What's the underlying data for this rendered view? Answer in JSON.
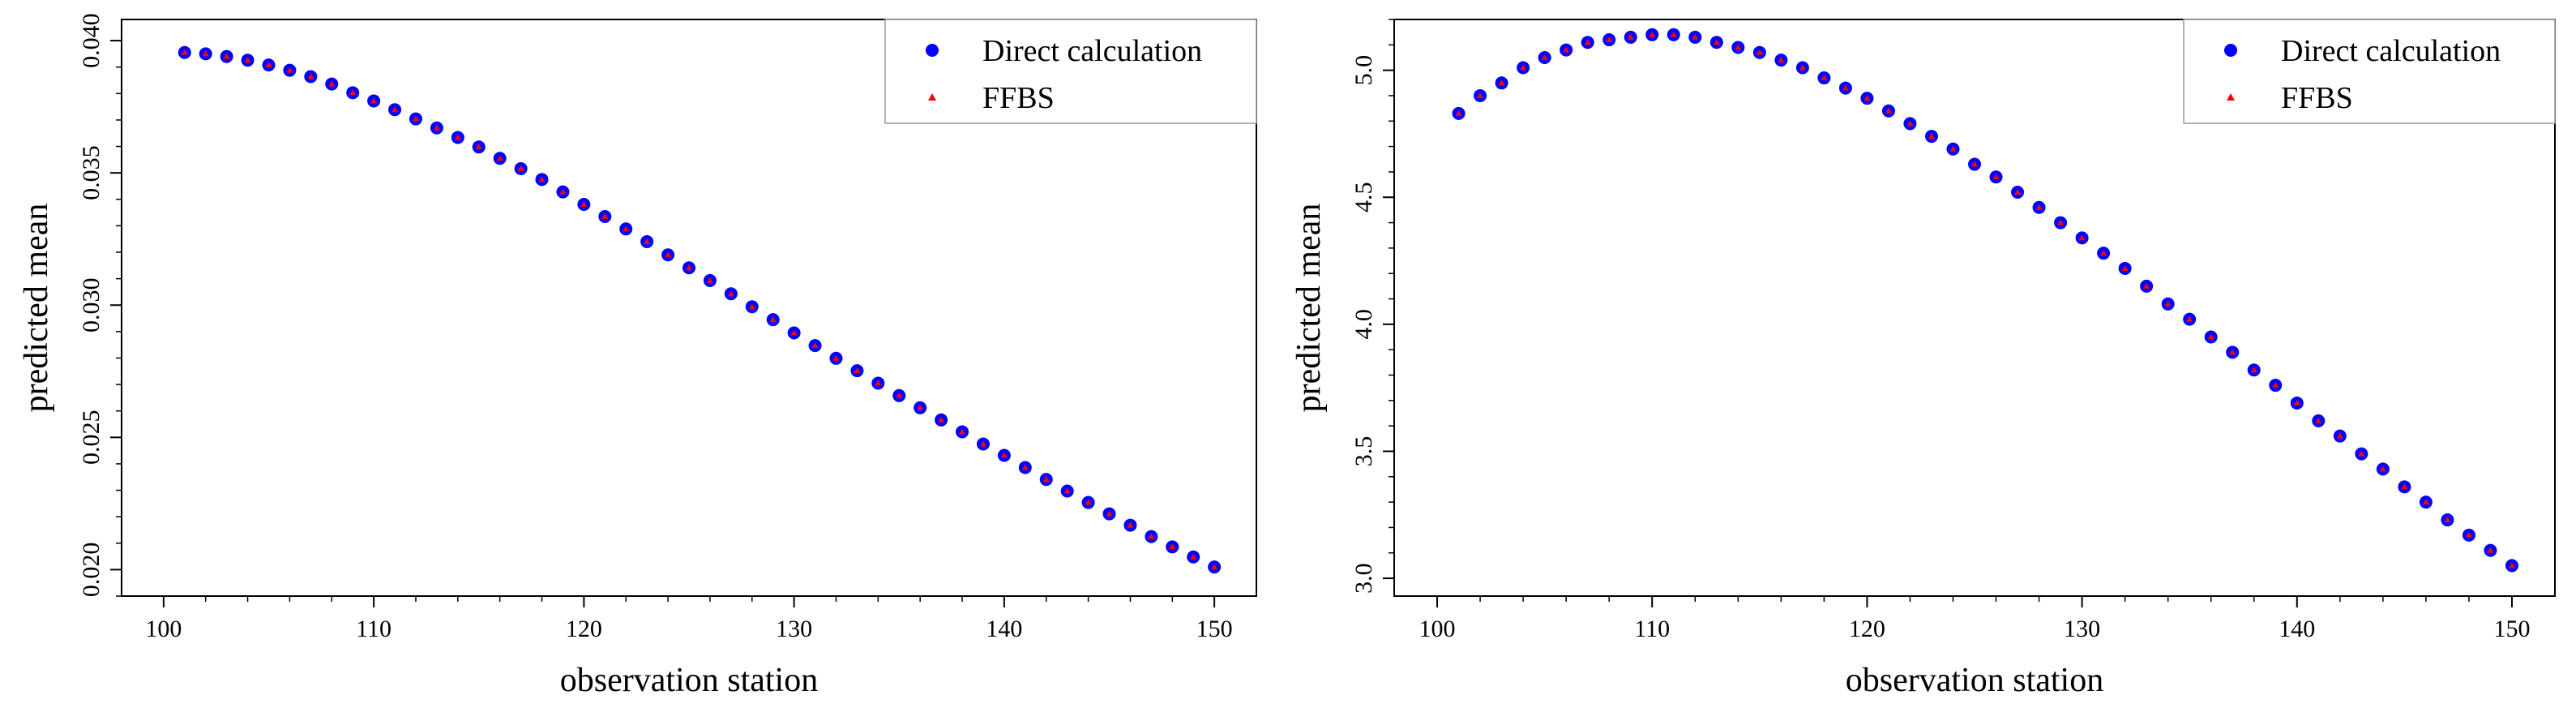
{
  "colors": {
    "direct": "#0000ff",
    "ffbs": "#ff0000",
    "axis": "#000000",
    "legend_border": "#999999"
  },
  "chart_data": [
    {
      "type": "scatter",
      "title": "",
      "xlabel": "observation station",
      "ylabel": "predicted mean",
      "xlim": [
        98,
        152
      ],
      "ylim": [
        0.019,
        0.0408
      ],
      "xticks": [
        100,
        110,
        120,
        130,
        140,
        150
      ],
      "xtick_labels": [
        "100",
        "110",
        "120",
        "130",
        "140",
        "150"
      ],
      "yticks": [
        0.02,
        0.025,
        0.03,
        0.035,
        0.04
      ],
      "ytick_labels": [
        "0.020",
        "0.025",
        "0.030",
        "0.035",
        "0.040"
      ],
      "grid": false,
      "legend_position": "top-right",
      "x": [
        101,
        102,
        103,
        104,
        105,
        106,
        107,
        108,
        109,
        110,
        111,
        112,
        113,
        114,
        115,
        116,
        117,
        118,
        119,
        120,
        121,
        122,
        123,
        124,
        125,
        126,
        127,
        128,
        129,
        130,
        131,
        132,
        133,
        134,
        135,
        136,
        137,
        138,
        139,
        140,
        141,
        142,
        143,
        144,
        145,
        146,
        147,
        148,
        149,
        150
      ],
      "series": [
        {
          "name": "Direct calculation",
          "marker": "circle",
          "color": "#0000ff",
          "values": [
            0.03955,
            0.0395,
            0.0394,
            0.03926,
            0.03908,
            0.03888,
            0.03864,
            0.03836,
            0.03803,
            0.03772,
            0.03739,
            0.03704,
            0.0367,
            0.03634,
            0.03598,
            0.03555,
            0.03516,
            0.03475,
            0.03428,
            0.03381,
            0.03335,
            0.03288,
            0.0324,
            0.0319,
            0.03141,
            0.03093,
            0.03043,
            0.02994,
            0.02945,
            0.02895,
            0.02847,
            0.02799,
            0.02752,
            0.02705,
            0.02658,
            0.02612,
            0.02566,
            0.02521,
            0.02475,
            0.02432,
            0.02386,
            0.02341,
            0.02297,
            0.02254,
            0.02211,
            0.02168,
            0.02125,
            0.02086,
            0.02048,
            0.0201
          ]
        },
        {
          "name": "FFBS",
          "marker": "triangle",
          "color": "#ff0000",
          "values": [
            0.03955,
            0.0395,
            0.0394,
            0.03926,
            0.03908,
            0.03888,
            0.03864,
            0.03836,
            0.03803,
            0.03772,
            0.03739,
            0.03704,
            0.0367,
            0.03634,
            0.03598,
            0.03555,
            0.03516,
            0.03475,
            0.03428,
            0.03381,
            0.03335,
            0.03288,
            0.0324,
            0.0319,
            0.03141,
            0.03093,
            0.03043,
            0.02994,
            0.02945,
            0.02895,
            0.02847,
            0.02799,
            0.02752,
            0.02705,
            0.02658,
            0.02612,
            0.02566,
            0.02521,
            0.02475,
            0.02432,
            0.02386,
            0.02341,
            0.02297,
            0.02254,
            0.02211,
            0.02168,
            0.02125,
            0.02086,
            0.02048,
            0.0201
          ]
        }
      ]
    },
    {
      "type": "scatter",
      "title": "",
      "xlabel": "observation station",
      "ylabel": "predicted mean",
      "xlim": [
        98,
        152
      ],
      "ylim": [
        2.93,
        5.2
      ],
      "xticks": [
        100,
        110,
        120,
        130,
        140,
        150
      ],
      "xtick_labels": [
        "100",
        "110",
        "120",
        "130",
        "140",
        "150"
      ],
      "yticks": [
        3.0,
        3.5,
        4.0,
        4.5,
        5.0
      ],
      "ytick_labels": [
        "3.0",
        "3.5",
        "4.0",
        "4.5",
        "5.0"
      ],
      "grid": false,
      "legend_position": "top-right",
      "x": [
        101,
        102,
        103,
        104,
        105,
        106,
        107,
        108,
        109,
        110,
        111,
        112,
        113,
        114,
        115,
        116,
        117,
        118,
        119,
        120,
        121,
        122,
        123,
        124,
        125,
        126,
        127,
        128,
        129,
        130,
        131,
        132,
        133,
        134,
        135,
        136,
        137,
        138,
        139,
        140,
        141,
        142,
        143,
        144,
        145,
        146,
        147,
        148,
        149,
        150
      ],
      "series": [
        {
          "name": "Direct calculation",
          "marker": "circle",
          "color": "#0000ff",
          "values": [
            4.83,
            4.9,
            4.95,
            5.01,
            5.05,
            5.08,
            5.11,
            5.12,
            5.13,
            5.14,
            5.14,
            5.13,
            5.11,
            5.09,
            5.07,
            5.04,
            5.01,
            4.97,
            4.93,
            4.89,
            4.84,
            4.79,
            4.74,
            4.69,
            4.63,
            4.58,
            4.52,
            4.46,
            4.4,
            4.34,
            4.28,
            4.22,
            4.15,
            4.08,
            4.02,
            3.95,
            3.89,
            3.82,
            3.76,
            3.69,
            3.62,
            3.56,
            3.49,
            3.43,
            3.36,
            3.3,
            3.23,
            3.17,
            3.11,
            3.05
          ]
        },
        {
          "name": "FFBS",
          "marker": "triangle",
          "color": "#ff0000",
          "values": [
            4.83,
            4.9,
            4.95,
            5.01,
            5.05,
            5.08,
            5.11,
            5.12,
            5.13,
            5.14,
            5.14,
            5.13,
            5.11,
            5.09,
            5.07,
            5.04,
            5.01,
            4.97,
            4.93,
            4.89,
            4.84,
            4.79,
            4.74,
            4.69,
            4.63,
            4.58,
            4.52,
            4.46,
            4.4,
            4.34,
            4.28,
            4.22,
            4.15,
            4.08,
            4.02,
            3.95,
            3.89,
            3.82,
            3.76,
            3.69,
            3.62,
            3.56,
            3.49,
            3.43,
            3.36,
            3.3,
            3.23,
            3.17,
            3.11,
            3.05
          ]
        }
      ]
    }
  ]
}
